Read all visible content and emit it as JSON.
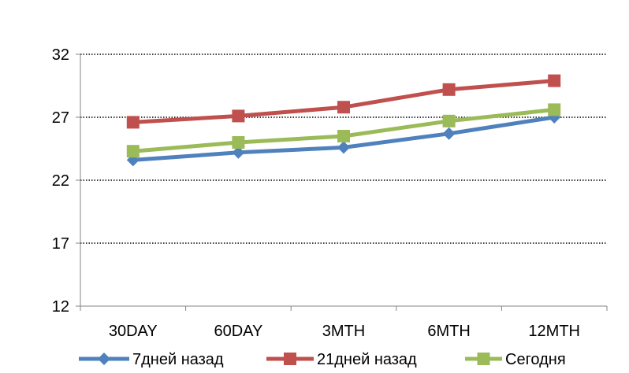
{
  "chart_data": {
    "type": "line",
    "categories": [
      "30DAY",
      "60DAY",
      "3MTH",
      "6MTH",
      "12MTH"
    ],
    "y_ticks": [
      "12",
      "17",
      "22",
      "27",
      "32"
    ],
    "ylim": [
      12,
      32
    ],
    "grid": true,
    "legend_position": "bottom",
    "series": [
      {
        "name": "7дней назад",
        "values": [
          23.6,
          24.2,
          24.6,
          25.7,
          27.0
        ],
        "color": "#4F81BD",
        "marker": "diamond"
      },
      {
        "name": "21дней назад",
        "values": [
          26.6,
          27.1,
          27.8,
          29.2,
          29.9
        ],
        "color": "#C0504D",
        "marker": "square"
      },
      {
        "name": "Сегодня",
        "values": [
          24.3,
          25.0,
          25.5,
          26.7,
          27.6
        ],
        "color": "#9BBB59",
        "marker": "square"
      }
    ]
  }
}
